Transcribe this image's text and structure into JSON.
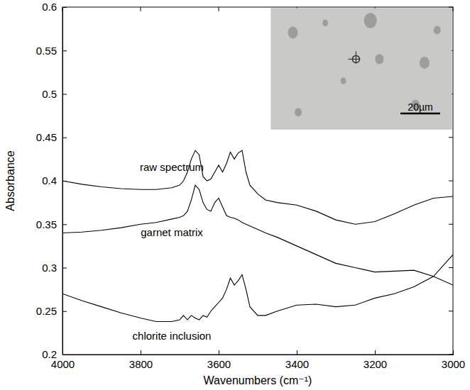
{
  "chart_data": {
    "type": "line",
    "x_label": "Wavenumbers (cm⁻¹)",
    "y_label": "Absorbance",
    "xlim": [
      4000,
      3000
    ],
    "ylim": [
      0.2,
      0.6
    ],
    "xticks": [
      4000,
      3800,
      3600,
      3400,
      3200,
      3000
    ],
    "yticks": [
      0.2,
      0.25,
      0.3,
      0.35,
      0.4,
      0.45,
      0.5,
      0.55,
      0.6
    ],
    "inset_scale_label": "20µm",
    "x": [
      4000,
      3950,
      3900,
      3850,
      3800,
      3760,
      3720,
      3700,
      3690,
      3680,
      3670,
      3660,
      3650,
      3640,
      3630,
      3620,
      3610,
      3600,
      3590,
      3580,
      3570,
      3560,
      3550,
      3540,
      3530,
      3520,
      3500,
      3480,
      3450,
      3400,
      3350,
      3300,
      3250,
      3200,
      3150,
      3100,
      3050,
      3000
    ],
    "series": [
      {
        "name": "raw spectrum",
        "color": "#000000",
        "values": [
          0.4,
          0.396,
          0.393,
          0.391,
          0.39,
          0.39,
          0.392,
          0.395,
          0.4,
          0.41,
          0.425,
          0.435,
          0.43,
          0.405,
          0.4,
          0.402,
          0.41,
          0.418,
          0.41,
          0.42,
          0.433,
          0.425,
          0.432,
          0.435,
          0.41,
          0.395,
          0.385,
          0.378,
          0.375,
          0.372,
          0.365,
          0.355,
          0.35,
          0.353,
          0.362,
          0.372,
          0.38,
          0.382
        ]
      },
      {
        "name": "garnet matrix",
        "color": "#000000",
        "values": [
          0.34,
          0.341,
          0.343,
          0.346,
          0.35,
          0.352,
          0.356,
          0.358,
          0.36,
          0.365,
          0.378,
          0.395,
          0.39,
          0.375,
          0.367,
          0.365,
          0.375,
          0.38,
          0.37,
          0.36,
          0.358,
          0.357,
          0.355,
          0.352,
          0.35,
          0.348,
          0.344,
          0.34,
          0.335,
          0.325,
          0.315,
          0.305,
          0.3,
          0.295,
          0.296,
          0.297,
          0.29,
          0.28
        ]
      },
      {
        "name": "chlorite inclusion",
        "color": "#000000",
        "values": [
          0.27,
          0.262,
          0.255,
          0.248,
          0.242,
          0.238,
          0.238,
          0.24,
          0.245,
          0.24,
          0.245,
          0.242,
          0.24,
          0.245,
          0.243,
          0.25,
          0.255,
          0.26,
          0.265,
          0.275,
          0.288,
          0.28,
          0.285,
          0.292,
          0.275,
          0.255,
          0.245,
          0.245,
          0.25,
          0.257,
          0.258,
          0.255,
          0.257,
          0.265,
          0.27,
          0.278,
          0.29,
          0.315
        ]
      }
    ]
  }
}
